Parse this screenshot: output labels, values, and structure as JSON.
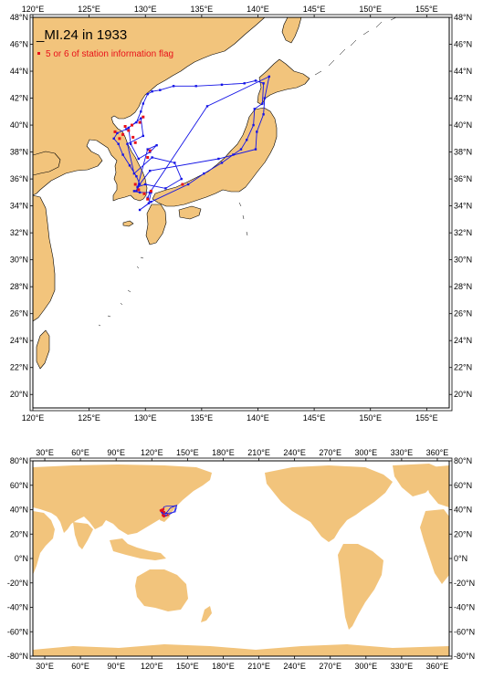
{
  "title": "_MI.24 in 1933",
  "legend": {
    "label": "5 or 6 of station information flag",
    "marker_color": "#e8101a"
  },
  "colors": {
    "land": "#f2c47c",
    "ocean": "#ffffff",
    "track": "#1414e6",
    "flagged": "#e8101a"
  },
  "regional_map": {
    "lon_ticks": [
      "120°E",
      "125°E",
      "130°E",
      "135°E",
      "140°E",
      "145°E",
      "150°E",
      "155°E"
    ],
    "lat_ticks": [
      "20°N",
      "22°N",
      "24°N",
      "26°N",
      "28°N",
      "30°N",
      "32°N",
      "34°N",
      "36°N",
      "38°N",
      "40°N",
      "42°N",
      "44°N",
      "46°N",
      "48°N"
    ],
    "lon_range": [
      120,
      157
    ],
    "lat_range": [
      19,
      48
    ]
  },
  "global_map": {
    "lon_ticks": [
      "30°E",
      "60°E",
      "90°E",
      "120°E",
      "150°E",
      "180°E",
      "210°E",
      "240°E",
      "270°E",
      "300°E",
      "330°E",
      "360°E"
    ],
    "lat_ticks": [
      "-80°N",
      "-60°N",
      "-40°N",
      "-20°N",
      "0°N",
      "20°N",
      "40°N",
      "60°N",
      "80°N"
    ],
    "lon_range": [
      20,
      370
    ],
    "lat_range": [
      -80,
      80
    ]
  },
  "track_points": [
    [
      129.0,
      35.1
    ],
    [
      129.5,
      35.0
    ],
    [
      130.5,
      35.0
    ],
    [
      130.3,
      34.2
    ],
    [
      129.5,
      33.7
    ],
    [
      130.5,
      34.3
    ],
    [
      133.8,
      35.6
    ],
    [
      135.2,
      36.4
    ],
    [
      136.8,
      37.2
    ],
    [
      137.8,
      37.8
    ],
    [
      138.5,
      38.2
    ],
    [
      139.0,
      38.9
    ],
    [
      139.6,
      40.0
    ],
    [
      139.7,
      41.2
    ],
    [
      140.4,
      41.6
    ],
    [
      140.5,
      43.1
    ],
    [
      139.8,
      43.3
    ],
    [
      138.8,
      43.1
    ],
    [
      136.8,
      43.0
    ],
    [
      134.5,
      42.9
    ],
    [
      132.5,
      42.9
    ],
    [
      131.3,
      42.6
    ],
    [
      130.6,
      42.5
    ],
    [
      130.2,
      42.3
    ],
    [
      129.8,
      41.6
    ],
    [
      129.6,
      41.0
    ],
    [
      129.2,
      40.2
    ],
    [
      128.3,
      39.7
    ],
    [
      127.5,
      39.4
    ],
    [
      127.2,
      39.0
    ],
    [
      127.6,
      38.6
    ],
    [
      128.0,
      37.8
    ],
    [
      128.6,
      37.0
    ],
    [
      129.2,
      36.2
    ],
    [
      129.5,
      35.6
    ],
    [
      129.2,
      35.1
    ],
    [
      130.2,
      38.2
    ],
    [
      131.0,
      38.5
    ],
    [
      130.4,
      38.0
    ],
    [
      129.4,
      37.5
    ],
    [
      128.7,
      38.6
    ],
    [
      128.5,
      39.8
    ],
    [
      129.6,
      40.5
    ],
    [
      129.8,
      39.2
    ],
    [
      128.4,
      38.6
    ],
    [
      129.0,
      36.4
    ],
    [
      130.6,
      37.6
    ],
    [
      132.6,
      37.2
    ],
    [
      133.2,
      36.0
    ],
    [
      131.8,
      35.3
    ],
    [
      130.0,
      35.6
    ],
    [
      129.3,
      35.4
    ],
    [
      130.4,
      36.6
    ],
    [
      136.5,
      37.5
    ],
    [
      139.8,
      38.2
    ],
    [
      139.9,
      39.5
    ],
    [
      140.5,
      40.8
    ],
    [
      140.6,
      42.0
    ],
    [
      141.0,
      43.6
    ],
    [
      135.5,
      41.4
    ],
    [
      130.4,
      35.0
    ],
    [
      130.2,
      34.6
    ]
  ],
  "flagged_points": [
    [
      128.5,
      39.6
    ],
    [
      128.2,
      39.9
    ],
    [
      128.8,
      40.0
    ],
    [
      129.5,
      40.2
    ],
    [
      129.8,
      40.6
    ],
    [
      127.3,
      39.5
    ],
    [
      127.7,
      39.0
    ],
    [
      129.1,
      38.7
    ],
    [
      130.4,
      38.1
    ],
    [
      130.2,
      37.6
    ],
    [
      129.1,
      35.6
    ],
    [
      129.4,
      35.2
    ],
    [
      129.9,
      34.9
    ],
    [
      130.2,
      34.5
    ],
    [
      130.5,
      35.1
    ],
    [
      133.3,
      35.6
    ],
    [
      128.0,
      39.3
    ],
    [
      128.9,
      39.1
    ]
  ]
}
